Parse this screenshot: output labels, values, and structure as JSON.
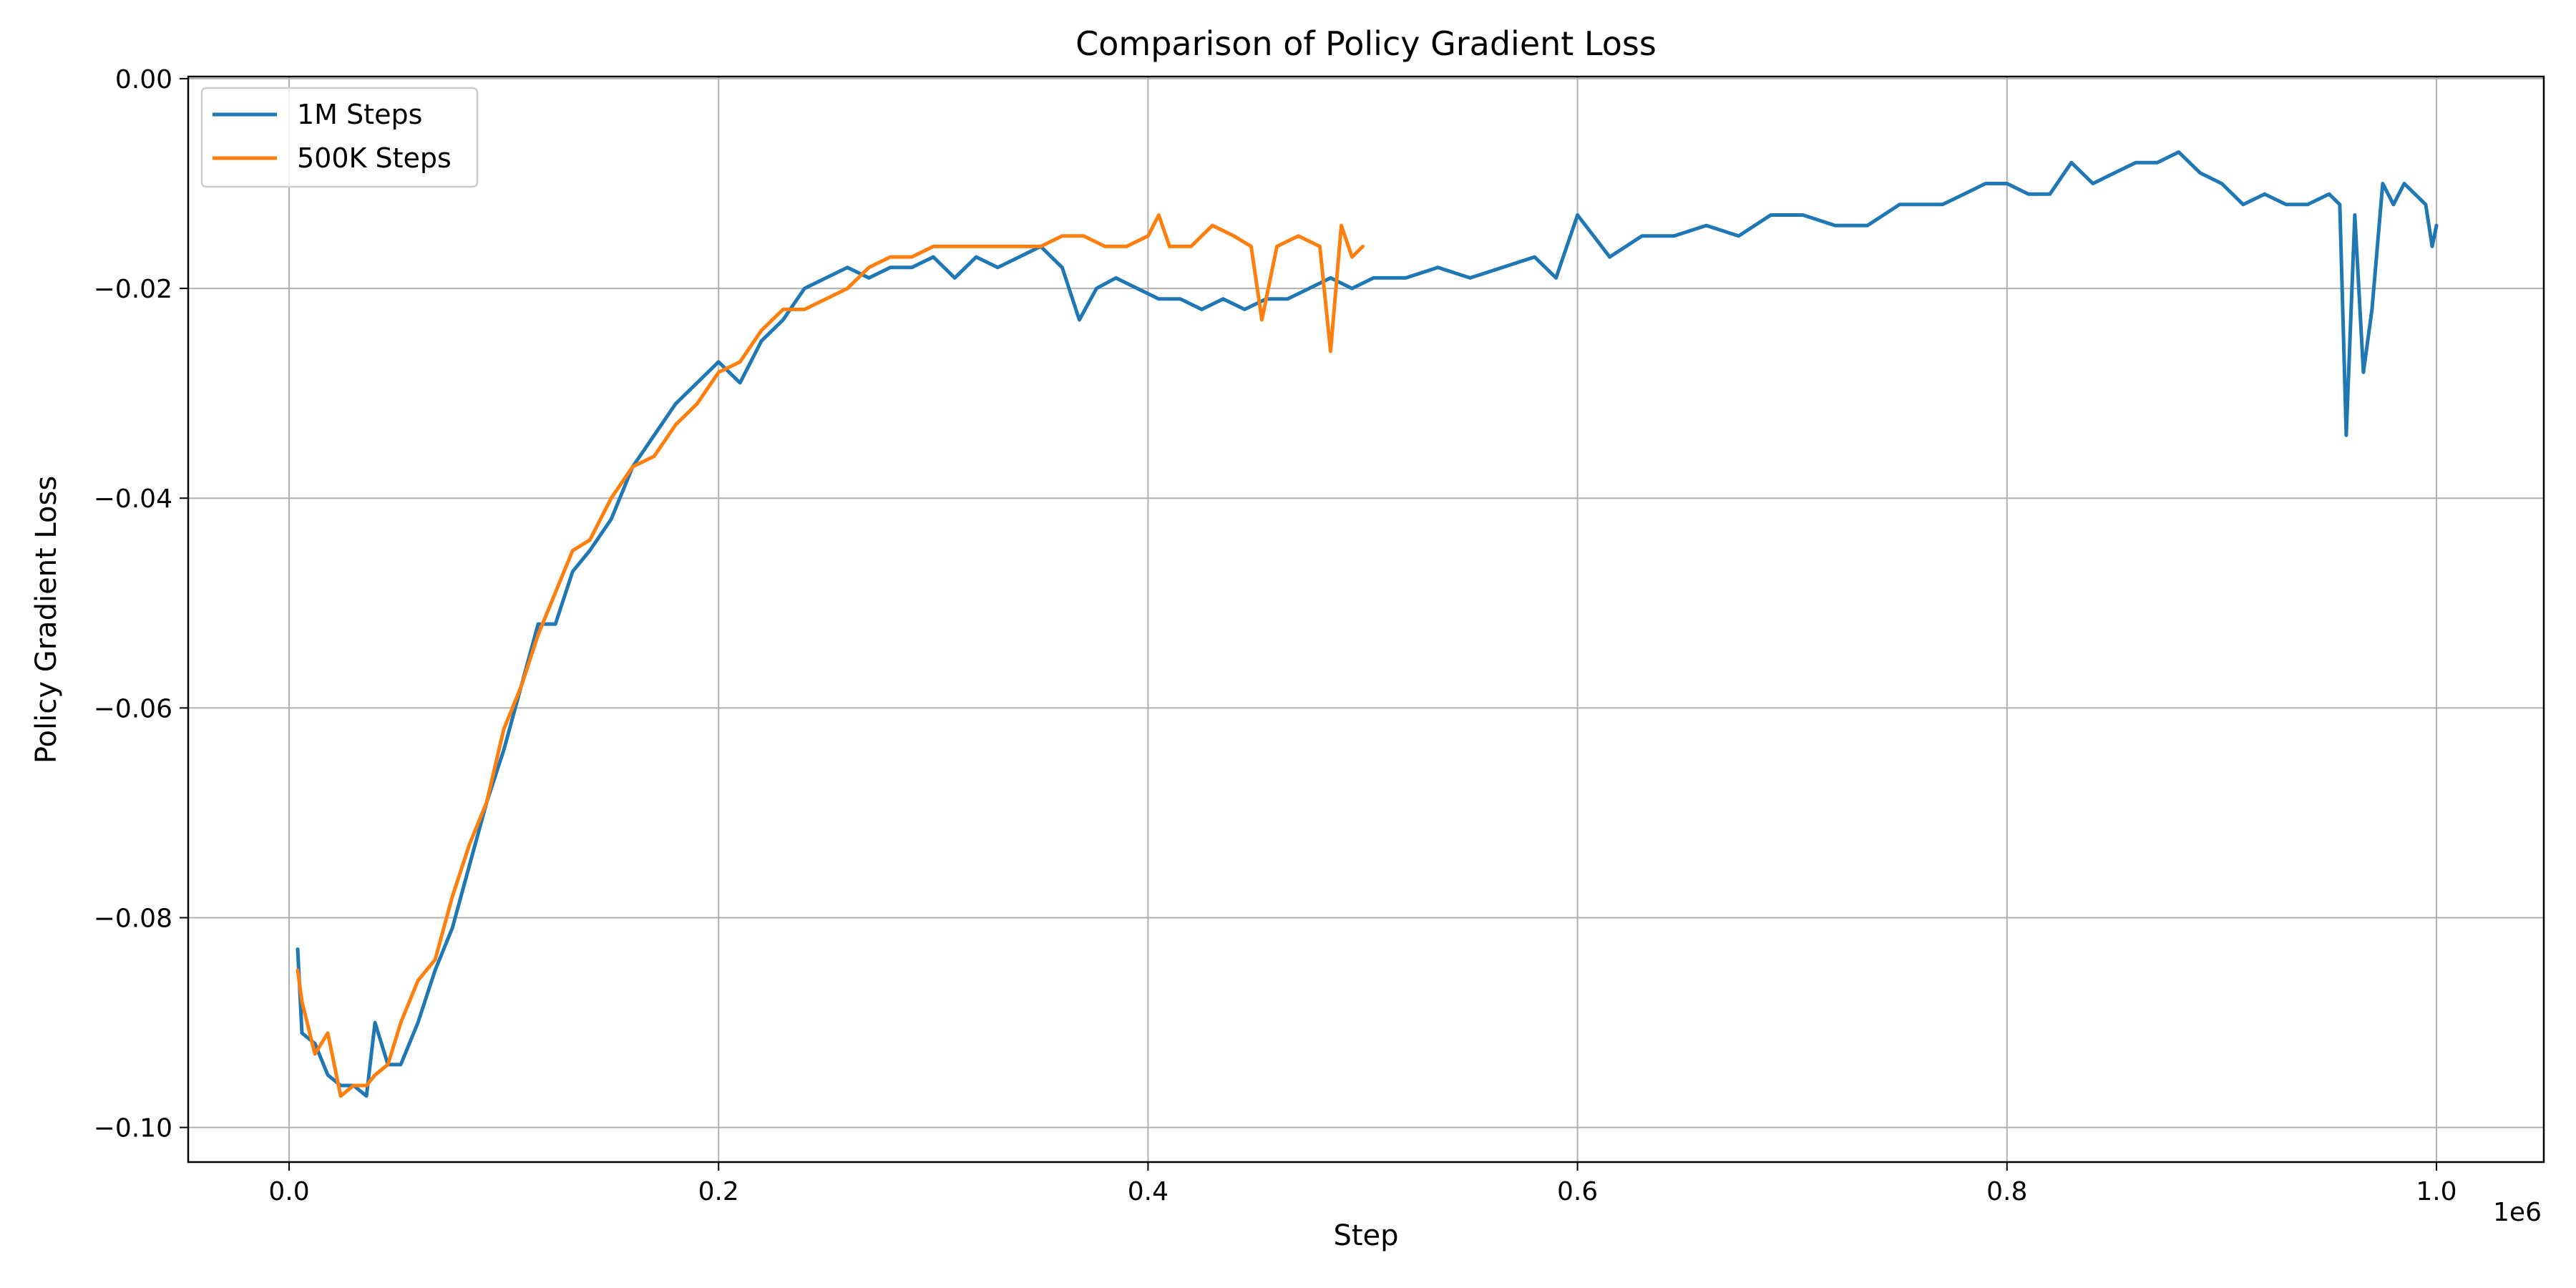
{
  "chart_data": {
    "type": "line",
    "title": "Comparison of Policy Gradient Loss",
    "xlabel": "Step",
    "ylabel": "Policy Gradient Loss",
    "x_offset_label": "1e6",
    "xlim": [
      -0.047,
      1.05
    ],
    "ylim": [
      -0.1033,
      0.0002
    ],
    "x_tick_values": [
      0.0,
      0.2,
      0.4,
      0.6,
      0.8,
      1.0
    ],
    "x_tick_labels": [
      "0.0",
      "0.2",
      "0.4",
      "0.6",
      "0.8",
      "1.0"
    ],
    "y_tick_values": [
      0.0,
      -0.02,
      -0.04,
      -0.06,
      -0.08,
      -0.1
    ],
    "y_tick_labels": [
      "0.00",
      "−0.02",
      "−0.04",
      "−0.06",
      "−0.08",
      "−0.10"
    ],
    "grid": true,
    "legend_position": "top-left",
    "series": [
      {
        "name": "1M Steps",
        "color": "#1f77b4",
        "x": [
          0.004,
          0.006,
          0.012,
          0.018,
          0.024,
          0.03,
          0.036,
          0.04,
          0.046,
          0.052,
          0.06,
          0.068,
          0.076,
          0.084,
          0.092,
          0.1,
          0.108,
          0.116,
          0.124,
          0.132,
          0.14,
          0.15,
          0.16,
          0.17,
          0.18,
          0.19,
          0.2,
          0.21,
          0.22,
          0.23,
          0.24,
          0.25,
          0.26,
          0.27,
          0.28,
          0.29,
          0.3,
          0.31,
          0.32,
          0.33,
          0.34,
          0.35,
          0.36,
          0.368,
          0.376,
          0.385,
          0.395,
          0.405,
          0.415,
          0.425,
          0.435,
          0.445,
          0.455,
          0.465,
          0.475,
          0.485,
          0.495,
          0.505,
          0.52,
          0.535,
          0.55,
          0.565,
          0.58,
          0.59,
          0.6,
          0.615,
          0.63,
          0.645,
          0.66,
          0.675,
          0.69,
          0.705,
          0.72,
          0.735,
          0.75,
          0.76,
          0.77,
          0.78,
          0.79,
          0.8,
          0.81,
          0.82,
          0.83,
          0.84,
          0.85,
          0.86,
          0.87,
          0.88,
          0.89,
          0.9,
          0.91,
          0.92,
          0.93,
          0.94,
          0.95,
          0.955,
          0.958,
          0.962,
          0.966,
          0.97,
          0.975,
          0.98,
          0.985,
          0.99,
          0.995,
          0.998,
          1.0
        ],
        "y": [
          -0.083,
          -0.091,
          -0.092,
          -0.095,
          -0.096,
          -0.096,
          -0.097,
          -0.09,
          -0.094,
          -0.094,
          -0.09,
          -0.085,
          -0.081,
          -0.075,
          -0.069,
          -0.064,
          -0.058,
          -0.052,
          -0.052,
          -0.047,
          -0.045,
          -0.042,
          -0.037,
          -0.034,
          -0.031,
          -0.029,
          -0.027,
          -0.029,
          -0.025,
          -0.023,
          -0.02,
          -0.019,
          -0.018,
          -0.019,
          -0.018,
          -0.018,
          -0.017,
          -0.019,
          -0.017,
          -0.018,
          -0.017,
          -0.016,
          -0.018,
          -0.023,
          -0.02,
          -0.019,
          -0.02,
          -0.021,
          -0.021,
          -0.022,
          -0.021,
          -0.022,
          -0.021,
          -0.021,
          -0.02,
          -0.019,
          -0.02,
          -0.019,
          -0.019,
          -0.018,
          -0.019,
          -0.018,
          -0.017,
          -0.019,
          -0.013,
          -0.017,
          -0.015,
          -0.015,
          -0.014,
          -0.015,
          -0.013,
          -0.013,
          -0.014,
          -0.014,
          -0.012,
          -0.012,
          -0.012,
          -0.011,
          -0.01,
          -0.01,
          -0.011,
          -0.011,
          -0.008,
          -0.01,
          -0.009,
          -0.008,
          -0.008,
          -0.007,
          -0.009,
          -0.01,
          -0.012,
          -0.011,
          -0.012,
          -0.012,
          -0.011,
          -0.012,
          -0.034,
          -0.013,
          -0.028,
          -0.022,
          -0.01,
          -0.012,
          -0.01,
          -0.011,
          -0.012,
          -0.016,
          -0.014
        ]
      },
      {
        "name": "500K Steps",
        "color": "#ff7f0e",
        "x": [
          0.004,
          0.006,
          0.012,
          0.018,
          0.024,
          0.03,
          0.036,
          0.04,
          0.046,
          0.052,
          0.06,
          0.068,
          0.076,
          0.084,
          0.092,
          0.1,
          0.108,
          0.116,
          0.124,
          0.132,
          0.14,
          0.15,
          0.16,
          0.17,
          0.18,
          0.19,
          0.2,
          0.21,
          0.22,
          0.23,
          0.24,
          0.25,
          0.26,
          0.27,
          0.28,
          0.29,
          0.3,
          0.31,
          0.32,
          0.33,
          0.34,
          0.35,
          0.36,
          0.37,
          0.38,
          0.39,
          0.4,
          0.405,
          0.41,
          0.42,
          0.43,
          0.44,
          0.448,
          0.453,
          0.46,
          0.47,
          0.48,
          0.485,
          0.49,
          0.495,
          0.5
        ],
        "y": [
          -0.085,
          -0.088,
          -0.093,
          -0.091,
          -0.097,
          -0.096,
          -0.096,
          -0.095,
          -0.094,
          -0.09,
          -0.086,
          -0.084,
          -0.078,
          -0.073,
          -0.069,
          -0.062,
          -0.058,
          -0.053,
          -0.049,
          -0.045,
          -0.044,
          -0.04,
          -0.037,
          -0.036,
          -0.033,
          -0.031,
          -0.028,
          -0.027,
          -0.024,
          -0.022,
          -0.022,
          -0.021,
          -0.02,
          -0.018,
          -0.017,
          -0.017,
          -0.016,
          -0.016,
          -0.016,
          -0.016,
          -0.016,
          -0.016,
          -0.015,
          -0.015,
          -0.016,
          -0.016,
          -0.015,
          -0.013,
          -0.016,
          -0.016,
          -0.014,
          -0.015,
          -0.016,
          -0.023,
          -0.016,
          -0.015,
          -0.016,
          -0.026,
          -0.014,
          -0.017,
          -0.016
        ]
      }
    ]
  }
}
